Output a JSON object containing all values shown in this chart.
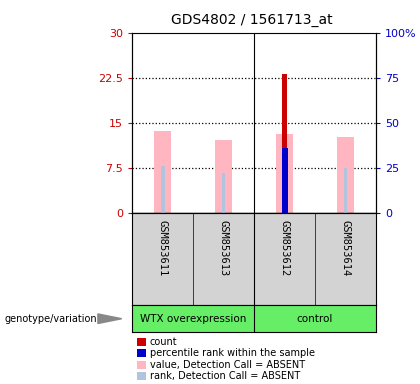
{
  "title": "GDS4802 / 1561713_at",
  "samples": [
    "GSM853611",
    "GSM853613",
    "GSM853612",
    "GSM853614"
  ],
  "ylim_left": [
    0,
    30
  ],
  "ylim_right": [
    0,
    100
  ],
  "yticks_left": [
    0,
    7.5,
    15,
    22.5,
    30
  ],
  "yticks_right": [
    0,
    25,
    50,
    75,
    100
  ],
  "ytick_labels_left": [
    "0",
    "7.5",
    "15",
    "22.5",
    "30"
  ],
  "ytick_labels_right": [
    "0",
    "25",
    "50",
    "75",
    "100%"
  ],
  "count_values": [
    null,
    null,
    23.2,
    null
  ],
  "percentile_rank": [
    null,
    null,
    10.8,
    null
  ],
  "value_absent": [
    13.6,
    12.2,
    13.2,
    12.7
  ],
  "rank_absent": [
    7.8,
    6.7,
    10.8,
    7.5
  ],
  "pink_color": "#ffb6c1",
  "lightblue_color": "#b0c4de",
  "red_color": "#cc0000",
  "blue_color": "#0000cc",
  "left_axis_color": "#cc0000",
  "right_axis_color": "#0000cc",
  "bg_color": "#ffffff",
  "plot_bg": "#ffffff",
  "sample_bg": "#d3d3d3",
  "group_bg": "#66ee66",
  "legend_items": [
    {
      "color": "#cc0000",
      "label": "count"
    },
    {
      "color": "#0000cc",
      "label": "percentile rank within the sample"
    },
    {
      "color": "#ffb6c1",
      "label": "value, Detection Call = ABSENT"
    },
    {
      "color": "#b0c4de",
      "label": "rank, Detection Call = ABSENT"
    }
  ]
}
